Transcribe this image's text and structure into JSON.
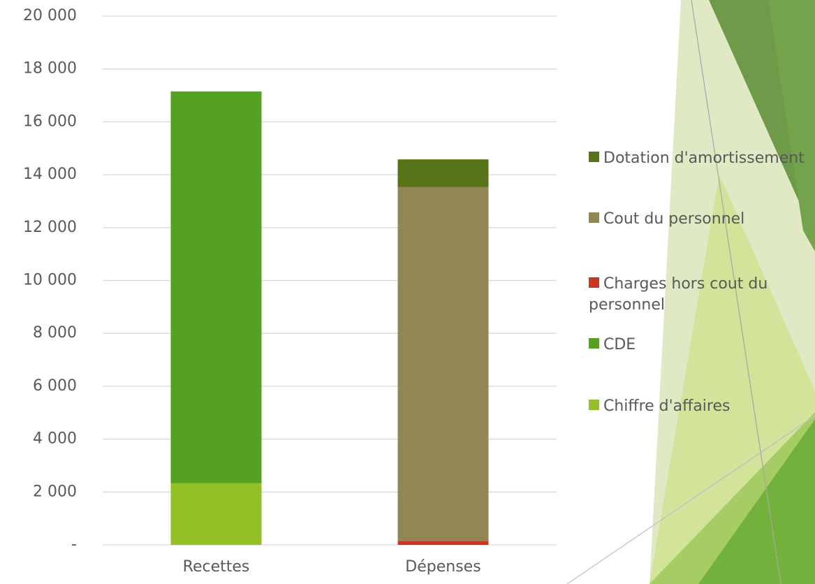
{
  "chart_data": {
    "type": "stacked_bar",
    "categories": [
      "Recettes",
      "Dépenses"
    ],
    "series": [
      {
        "name": "Chiffre d'affaires",
        "color": "#92c026",
        "values": [
          2330,
          0
        ]
      },
      {
        "name": "CDE",
        "color": "#55a222",
        "values": [
          14820,
          0
        ]
      },
      {
        "name": "Charges hors cout du personnel",
        "color": "#cd3521",
        "values": [
          0,
          150
        ]
      },
      {
        "name": "Cout du personnel",
        "color": "#918755",
        "values": [
          0,
          13380
        ]
      },
      {
        "name": "Dotation d'amortissement",
        "color": "#587418",
        "values": [
          0,
          1050
        ]
      }
    ],
    "ylim": [
      0,
      20000
    ],
    "yticks": [
      {
        "value": 0,
        "label": "-"
      },
      {
        "value": 2000,
        "label": "2 000"
      },
      {
        "value": 4000,
        "label": "4 000"
      },
      {
        "value": 6000,
        "label": "6 000"
      },
      {
        "value": 8000,
        "label": "8 000"
      },
      {
        "value": 10000,
        "label": "10 000"
      },
      {
        "value": 12000,
        "label": "12 000"
      },
      {
        "value": 14000,
        "label": "14 000"
      },
      {
        "value": 16000,
        "label": "16 000"
      },
      {
        "value": 18000,
        "label": "18 000"
      },
      {
        "value": 20000,
        "label": "20 000"
      }
    ],
    "grid": true,
    "legend": "right"
  }
}
